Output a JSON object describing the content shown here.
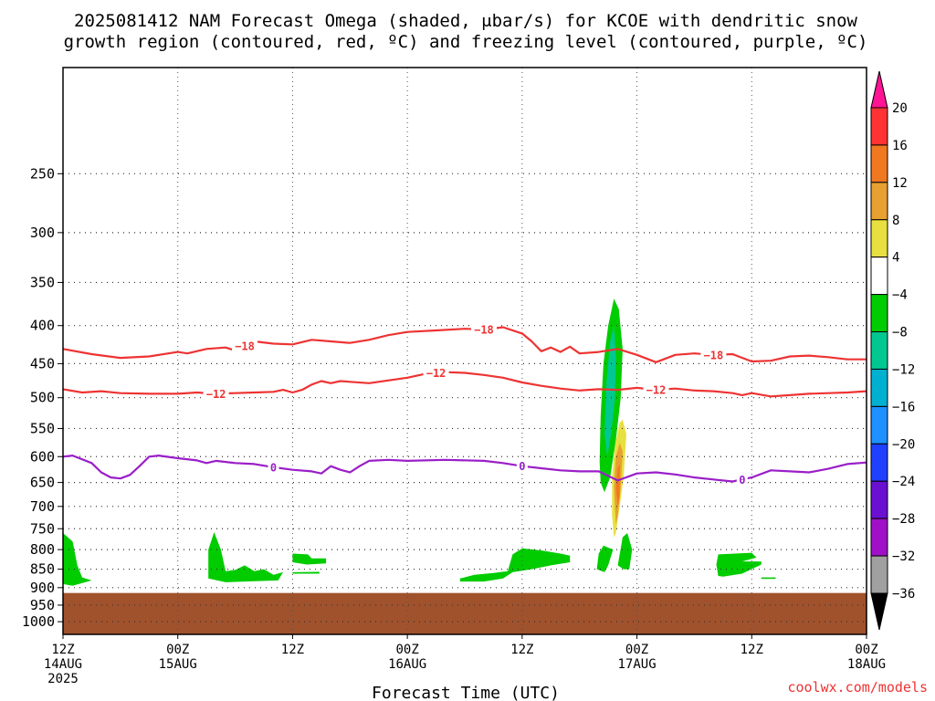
{
  "title_lines": [
    "2025081412 NAM Forecast Omega (shaded, μbar/s) for KCOE with dendritic snow",
    "growth region (contoured, red, ºC) and freezing level (contoured, purple, ºC)"
  ],
  "x_axis_label": "Forecast Time (UTC)",
  "credit": "coolwx.com/models",
  "chart_data": {
    "type": "time-height cross section",
    "x_unit": "hours from 2025-08-14 12Z",
    "xlim": [
      0,
      84
    ],
    "y_unit": "hPa",
    "ylim": [
      1040,
      180
    ],
    "y_scale": "log-pressure",
    "x_ticks": [
      {
        "hour": 0,
        "lines": [
          "12Z",
          "14AUG",
          "2025"
        ]
      },
      {
        "hour": 12,
        "lines": [
          "00Z",
          "15AUG"
        ]
      },
      {
        "hour": 24,
        "lines": [
          "12Z"
        ]
      },
      {
        "hour": 36,
        "lines": [
          "00Z",
          "16AUG"
        ]
      },
      {
        "hour": 48,
        "lines": [
          "12Z"
        ]
      },
      {
        "hour": 60,
        "lines": [
          "00Z",
          "17AUG"
        ]
      },
      {
        "hour": 72,
        "lines": [
          "12Z"
        ]
      },
      {
        "hour": 84,
        "lines": [
          "00Z",
          "18AUG"
        ]
      }
    ],
    "y_ticks": [
      250,
      300,
      350,
      400,
      450,
      500,
      550,
      600,
      650,
      700,
      750,
      800,
      850,
      900,
      950,
      1000
    ],
    "grid": true,
    "terrain": {
      "color": "#a0522d",
      "top_hpa": 915
    },
    "colorbar": {
      "unit": "μbar/s",
      "labels": [
        "20",
        "16",
        "12",
        "8",
        "4",
        "−4",
        "−8",
        "−12",
        "−16",
        "−20",
        "−24",
        "−28",
        "−32",
        "−36"
      ],
      "colors": [
        "#ff1493",
        "#ff3333",
        "#f07820",
        "#e8a030",
        "#e8e040",
        "#ffffff",
        "#00cc00",
        "#00c890",
        "#00b0d0",
        "#1e90ff",
        "#2040ff",
        "#6a10d0",
        "#a010c8",
        "#a0a0a0",
        "#000000"
      ]
    },
    "contours": [
      {
        "level": "-18",
        "color": "#ee3333",
        "points": [
          [
            0,
            430
          ],
          [
            3,
            437
          ],
          [
            6,
            442
          ],
          [
            9,
            440
          ],
          [
            12,
            434
          ],
          [
            13,
            436
          ],
          [
            15,
            430
          ],
          [
            17,
            428
          ],
          [
            18,
            432
          ],
          [
            20,
            420
          ],
          [
            22,
            423
          ],
          [
            24,
            424
          ],
          [
            26,
            418
          ],
          [
            28,
            420
          ],
          [
            30,
            422
          ],
          [
            32,
            418
          ],
          [
            34,
            412
          ],
          [
            36,
            408
          ],
          [
            39,
            406
          ],
          [
            42,
            404
          ],
          [
            44,
            405
          ],
          [
            46,
            402
          ],
          [
            48,
            410
          ],
          [
            49,
            420
          ],
          [
            50,
            433
          ],
          [
            51,
            428
          ],
          [
            52,
            434
          ],
          [
            53,
            427
          ],
          [
            54,
            436
          ],
          [
            56,
            434
          ],
          [
            58,
            430
          ],
          [
            60,
            438
          ],
          [
            62,
            448
          ],
          [
            64,
            438
          ],
          [
            66,
            436
          ],
          [
            68,
            438
          ],
          [
            70,
            437
          ],
          [
            72,
            447
          ],
          [
            74,
            446
          ],
          [
            76,
            440
          ],
          [
            78,
            439
          ],
          [
            80,
            441
          ],
          [
            82,
            444
          ],
          [
            84,
            444
          ]
        ],
        "labels": [
          {
            "x": 19,
            "text": "−18"
          },
          {
            "x": 44,
            "text": "−18"
          },
          {
            "x": 68,
            "text": "−18"
          }
        ]
      },
      {
        "level": "-12",
        "color": "#ee3333",
        "points": [
          [
            0,
            487
          ],
          [
            2,
            492
          ],
          [
            4,
            490
          ],
          [
            6,
            493
          ],
          [
            9,
            494
          ],
          [
            12,
            494
          ],
          [
            14,
            492
          ],
          [
            16,
            494
          ],
          [
            18,
            493
          ],
          [
            20,
            492
          ],
          [
            22,
            491
          ],
          [
            23,
            488
          ],
          [
            24,
            492
          ],
          [
            25,
            488
          ],
          [
            26,
            480
          ],
          [
            27,
            475
          ],
          [
            28,
            478
          ],
          [
            29,
            475
          ],
          [
            30,
            476
          ],
          [
            32,
            478
          ],
          [
            34,
            474
          ],
          [
            36,
            470
          ],
          [
            38,
            464
          ],
          [
            40,
            462
          ],
          [
            42,
            463
          ],
          [
            44,
            466
          ],
          [
            46,
            470
          ],
          [
            48,
            477
          ],
          [
            50,
            482
          ],
          [
            52,
            486
          ],
          [
            54,
            489
          ],
          [
            56,
            487
          ],
          [
            58,
            488
          ],
          [
            60,
            485
          ],
          [
            62,
            488
          ],
          [
            64,
            486
          ],
          [
            66,
            489
          ],
          [
            68,
            490
          ],
          [
            70,
            493
          ],
          [
            71,
            496
          ],
          [
            72,
            493
          ],
          [
            74,
            498
          ],
          [
            76,
            496
          ],
          [
            78,
            494
          ],
          [
            80,
            493
          ],
          [
            82,
            492
          ],
          [
            84,
            490
          ]
        ],
        "labels": [
          {
            "x": 16,
            "text": "−12"
          },
          {
            "x": 39,
            "text": "−12"
          },
          {
            "x": 62,
            "text": "−12"
          }
        ]
      },
      {
        "level": "0",
        "color": "#9a1ec8",
        "points": [
          [
            0,
            600
          ],
          [
            1,
            598
          ],
          [
            3,
            612
          ],
          [
            4,
            630
          ],
          [
            5,
            640
          ],
          [
            6,
            642
          ],
          [
            7,
            635
          ],
          [
            8,
            618
          ],
          [
            9,
            600
          ],
          [
            10,
            598
          ],
          [
            12,
            603
          ],
          [
            14,
            607
          ],
          [
            15,
            612
          ],
          [
            16,
            608
          ],
          [
            18,
            612
          ],
          [
            20,
            614
          ],
          [
            22,
            620
          ],
          [
            24,
            625
          ],
          [
            26,
            628
          ],
          [
            27,
            632
          ],
          [
            28,
            618
          ],
          [
            29,
            625
          ],
          [
            30,
            630
          ],
          [
            31,
            618
          ],
          [
            32,
            608
          ],
          [
            34,
            606
          ],
          [
            36,
            608
          ],
          [
            40,
            606
          ],
          [
            44,
            608
          ],
          [
            46,
            612
          ],
          [
            48,
            618
          ],
          [
            50,
            622
          ],
          [
            52,
            626
          ],
          [
            54,
            628
          ],
          [
            56,
            628
          ],
          [
            58,
            646
          ],
          [
            60,
            632
          ],
          [
            62,
            630
          ],
          [
            64,
            634
          ],
          [
            66,
            640
          ],
          [
            68,
            644
          ],
          [
            70,
            648
          ],
          [
            72,
            640
          ],
          [
            74,
            626
          ],
          [
            76,
            628
          ],
          [
            78,
            630
          ],
          [
            80,
            623
          ],
          [
            82,
            614
          ],
          [
            84,
            611
          ]
        ],
        "labels": [
          {
            "x": 22,
            "text": "0"
          },
          {
            "x": 48,
            "text": "0"
          },
          {
            "x": 71,
            "text": "0"
          }
        ]
      }
    ],
    "shaded_regions": [
      {
        "color": "#00cc00",
        "points": [
          [
            0,
            760
          ],
          [
            1,
            780
          ],
          [
            1.5,
            840
          ],
          [
            2,
            872
          ],
          [
            3,
            880
          ],
          [
            1,
            895
          ],
          [
            0,
            890
          ]
        ]
      },
      {
        "color": "#00cc00",
        "points": [
          [
            15.2,
            800
          ],
          [
            15.8,
            758
          ],
          [
            16.5,
            800
          ],
          [
            17,
            855
          ],
          [
            18,
            852
          ],
          [
            19,
            840
          ],
          [
            20,
            855
          ],
          [
            21,
            850
          ],
          [
            22,
            865
          ],
          [
            23,
            858
          ],
          [
            22.5,
            880
          ],
          [
            17,
            885
          ],
          [
            15.2,
            875
          ]
        ]
      },
      {
        "color": "#00cc00",
        "points": [
          [
            24,
            810
          ],
          [
            25.6,
            812
          ],
          [
            26,
            822
          ],
          [
            27.5,
            822
          ],
          [
            27.5,
            835
          ],
          [
            25.5,
            838
          ],
          [
            24,
            832
          ]
        ]
      },
      {
        "color": "#00cc00",
        "points": [
          [
            24,
            858
          ],
          [
            26.8,
            857
          ],
          [
            26.8,
            862
          ],
          [
            24,
            862
          ]
        ]
      },
      {
        "color": "#00cc00",
        "points": [
          [
            41.5,
            875
          ],
          [
            43,
            865
          ],
          [
            45,
            860
          ],
          [
            46.5,
            855
          ],
          [
            47,
            812
          ],
          [
            48,
            797
          ],
          [
            50,
            802
          ],
          [
            52,
            810
          ],
          [
            53,
            815
          ],
          [
            53,
            832
          ],
          [
            51,
            840
          ],
          [
            49,
            850
          ],
          [
            47,
            858
          ],
          [
            46,
            875
          ],
          [
            44,
            883
          ],
          [
            41.5,
            883
          ]
        ]
      },
      {
        "color": "#00cc00",
        "points": [
          [
            55.8,
            850
          ],
          [
            56,
            810
          ],
          [
            56.5,
            790
          ],
          [
            57.5,
            800
          ],
          [
            57,
            840
          ],
          [
            56.6,
            858
          ]
        ]
      },
      {
        "color": "#00cc00",
        "points": [
          [
            58,
            840
          ],
          [
            58.5,
            770
          ],
          [
            59,
            760
          ],
          [
            59.5,
            800
          ],
          [
            59.2,
            850
          ],
          [
            58.6,
            850
          ]
        ]
      },
      {
        "color": "#00cc00",
        "points": [
          [
            68.3,
            838
          ],
          [
            68.5,
            812
          ],
          [
            72,
            808
          ],
          [
            72.5,
            820
          ],
          [
            71,
            830
          ],
          [
            73,
            830
          ],
          [
            73,
            838
          ],
          [
            71,
            862
          ],
          [
            69,
            870
          ],
          [
            68.5,
            868
          ]
        ]
      },
      {
        "color": "#00cc00",
        "points": [
          [
            73,
            872
          ],
          [
            74.5,
            872
          ],
          [
            74.5,
            876
          ],
          [
            73,
            876
          ]
        ]
      },
      {
        "color": "#00cc00",
        "points": [
          [
            56.1,
            610
          ],
          [
            56.2,
            530
          ],
          [
            56.5,
            450
          ],
          [
            57,
            400
          ],
          [
            57.6,
            368
          ],
          [
            58.1,
            380
          ],
          [
            58.5,
            430
          ],
          [
            58.3,
            500
          ],
          [
            57.8,
            570
          ],
          [
            57.2,
            640
          ],
          [
            56.6,
            670
          ],
          [
            56.2,
            650
          ]
        ]
      },
      {
        "color": "#00c890",
        "points": [
          [
            56.6,
            560
          ],
          [
            56.8,
            480
          ],
          [
            57.2,
            420
          ],
          [
            57.6,
            400
          ],
          [
            57.8,
            440
          ],
          [
            57.7,
            500
          ],
          [
            57.3,
            560
          ],
          [
            56.9,
            600
          ]
        ]
      },
      {
        "color": "#e8e040",
        "points": [
          [
            57.4,
            640
          ],
          [
            57.7,
            580
          ],
          [
            58.2,
            540
          ],
          [
            58.5,
            535
          ],
          [
            58.9,
            560
          ],
          [
            58.6,
            640
          ],
          [
            58.2,
            700
          ],
          [
            57.8,
            760
          ],
          [
            57.6,
            770
          ],
          [
            57.4,
            720
          ]
        ]
      },
      {
        "color": "#e8a030",
        "points": [
          [
            57.6,
            660
          ],
          [
            57.8,
            600
          ],
          [
            58.2,
            575
          ],
          [
            58.5,
            590
          ],
          [
            58.3,
            660
          ],
          [
            58,
            720
          ],
          [
            57.8,
            740
          ]
        ]
      },
      {
        "color": "#f07820",
        "points": [
          [
            57.8,
            660
          ],
          [
            58,
            620
          ],
          [
            58.2,
            615
          ],
          [
            58.2,
            680
          ],
          [
            58,
            700
          ]
        ]
      }
    ]
  }
}
